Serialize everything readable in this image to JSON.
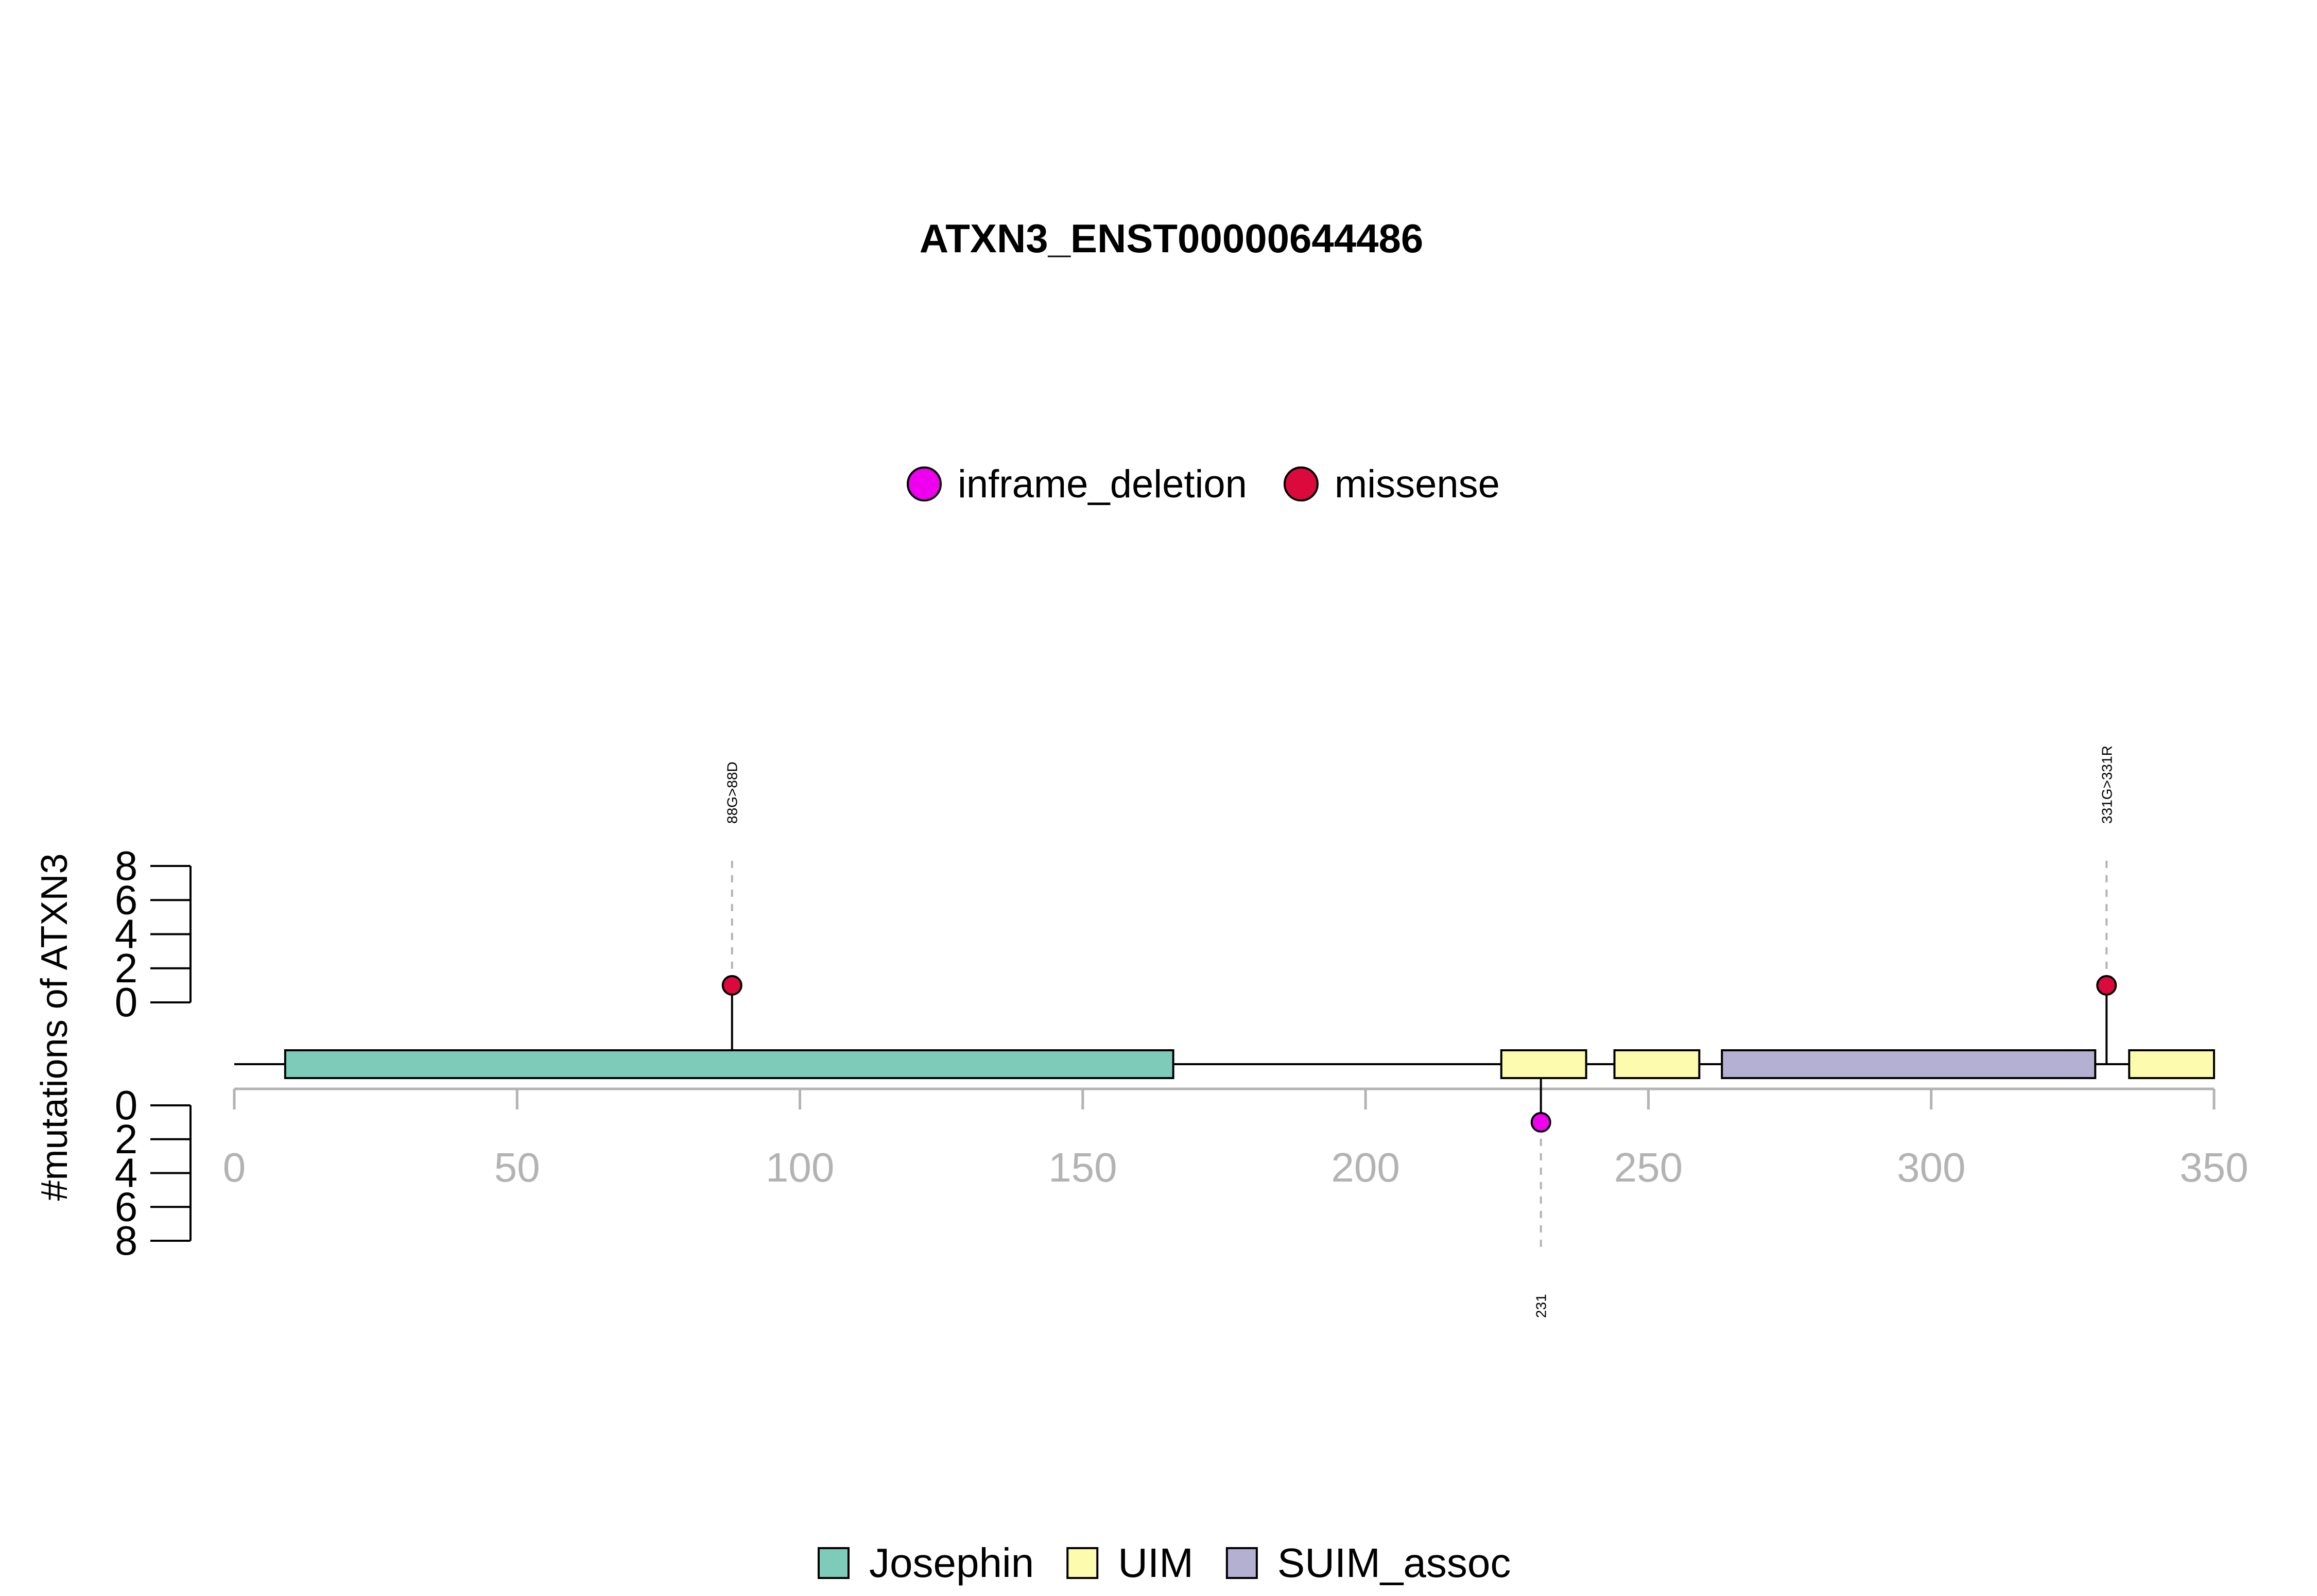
{
  "chart_data": {
    "type": "lollipop",
    "title": "ATXN3_ENST00000644486",
    "ylabel": "#mutations of ATXN3",
    "xlim": [
      0,
      350
    ],
    "x_ticks": [
      "0",
      "50",
      "100",
      "150",
      "200",
      "250",
      "300",
      "350"
    ],
    "y_ticks": [
      "0",
      "2",
      "4",
      "6",
      "8"
    ],
    "ylim_upper": [
      0,
      8
    ],
    "ylim_lower": [
      0,
      8
    ],
    "protein_range": [
      0,
      350
    ],
    "mutation_legend": [
      {
        "label": "inframe_deletion",
        "color": "#ee00ee"
      },
      {
        "label": "missense",
        "color": "#dc0a3c"
      }
    ],
    "domain_legend": [
      {
        "label": "Josephin",
        "color": "#7fcbb9"
      },
      {
        "label": "UIM",
        "color": "#fdfbad"
      },
      {
        "label": "SUIM_assoc",
        "color": "#b3b0d2"
      }
    ],
    "domains": [
      {
        "name": "Josephin",
        "start": 9,
        "end": 166,
        "color": "#7fcbb9"
      },
      {
        "name": "UIM",
        "start": 224,
        "end": 239,
        "color": "#fdfbad"
      },
      {
        "name": "UIM",
        "start": 244,
        "end": 259,
        "color": "#fdfbad"
      },
      {
        "name": "SUIM_assoc",
        "start": 263,
        "end": 329,
        "color": "#b3b0d2"
      },
      {
        "name": "UIM",
        "start": 335,
        "end": 350,
        "color": "#fdfbad"
      }
    ],
    "mutations": [
      {
        "position": 88,
        "count": 1,
        "type": "missense",
        "label": "88G>88D",
        "side": "top",
        "color": "#dc0a3c"
      },
      {
        "position": 331,
        "count": 1,
        "type": "missense",
        "label": "331G>331R",
        "side": "top",
        "color": "#dc0a3c"
      },
      {
        "position": 231,
        "count": 1,
        "type": "inframe_deletion",
        "label": "231",
        "side": "bottom",
        "color": "#ee00ee"
      }
    ]
  }
}
